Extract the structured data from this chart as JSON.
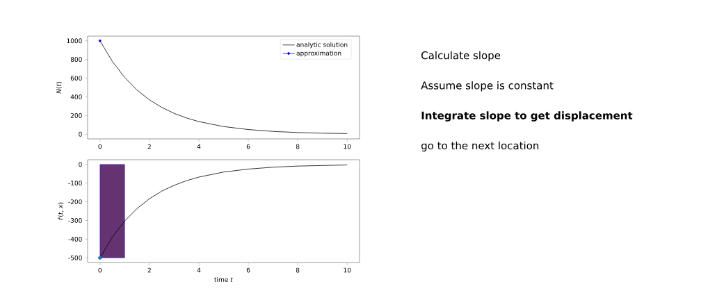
{
  "chart_data": [
    {
      "type": "line",
      "ylabel": "*N*(*t*)",
      "xlim": [
        -0.5,
        10.5
      ],
      "ylim": [
        -50,
        1050
      ],
      "xticks": [
        0,
        2,
        4,
        6,
        8,
        10
      ],
      "yticks": [
        0,
        200,
        400,
        600,
        800,
        1000
      ],
      "legend": "top right",
      "grid": false,
      "series": [
        {
          "name": "analytic solution",
          "color": "#000000",
          "marker": "none",
          "x": [
            0,
            0.5,
            1,
            1.5,
            2,
            2.5,
            3,
            3.5,
            4,
            5,
            6,
            7,
            8,
            9,
            10
          ],
          "values": [
            1000,
            779,
            607,
            472,
            368,
            287,
            223,
            174,
            135,
            82,
            50,
            30,
            18,
            11,
            7
          ]
        },
        {
          "name": "approximation",
          "color": "#0000ff",
          "marker": "circle",
          "x": [
            0
          ],
          "values": [
            1000
          ]
        }
      ]
    },
    {
      "type": "line",
      "xlabel": "time *t*",
      "ylabel": "*f*(*t*, *x*)",
      "xlim": [
        -0.5,
        10.5
      ],
      "ylim": [
        -525,
        25
      ],
      "xticks": [
        0,
        2,
        4,
        6,
        8,
        10
      ],
      "yticks": [
        -500,
        -400,
        -300,
        -200,
        -100,
        0
      ],
      "grid": false,
      "legend": false,
      "series": [
        {
          "type": "bar",
          "color": "#663372",
          "x": [
            0.5
          ],
          "values": [
            -500
          ]
        },
        {
          "color": "#000000",
          "marker": "none",
          "x": [
            0,
            0.5,
            1,
            1.5,
            2,
            2.5,
            3,
            3.5,
            4,
            5,
            6,
            7,
            8,
            9,
            10
          ],
          "values": [
            -500,
            -389,
            -303,
            -236,
            -184,
            -143,
            -112,
            -87,
            -68,
            -41,
            -25,
            -15,
            -9,
            -6,
            -3
          ]
        },
        {
          "type": "scatter",
          "color": "#1f77b4",
          "marker": "circle",
          "x": [
            0
          ],
          "values": [
            -500
          ]
        }
      ]
    },
    {
      "type": "other",
      "annotations": [
        "Calculate slope",
        "Assume slope is constant",
        "**Integrate slope to get displacement**",
        "go to the next location"
      ]
    }
  ]
}
